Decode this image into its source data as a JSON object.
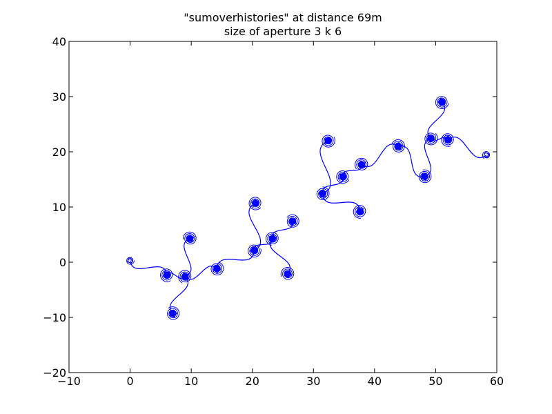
{
  "chart_data": {
    "type": "line",
    "title_lines": [
      "\"sumoverhistories\" at distance 69m",
      "size of aperture 3 k 6"
    ],
    "xlim": [
      -10,
      60
    ],
    "ylim": [
      -20,
      40
    ],
    "x_ticks": [
      -10,
      0,
      10,
      20,
      30,
      40,
      50,
      60
    ],
    "y_ticks": [
      -20,
      -10,
      0,
      10,
      20,
      30,
      40
    ],
    "x_tick_labels": [
      "−10",
      "0",
      "10",
      "20",
      "30",
      "40",
      "50",
      "60"
    ],
    "y_tick_labels": [
      "−20",
      "−10",
      "0",
      "10",
      "20",
      "30",
      "40"
    ],
    "grid": false,
    "line_color": "#0000ff",
    "spiral_centers": [
      {
        "x": 0,
        "y": 0.3,
        "size": "small"
      },
      {
        "x": 6,
        "y": -2.3,
        "size": "large"
      },
      {
        "x": 9,
        "y": -2.6,
        "size": "large"
      },
      {
        "x": 9.8,
        "y": 4.3,
        "size": "large"
      },
      {
        "x": 7,
        "y": -9.3,
        "size": "large"
      },
      {
        "x": 14.2,
        "y": -1.2,
        "size": "large"
      },
      {
        "x": 20.3,
        "y": 2.1,
        "size": "large"
      },
      {
        "x": 20.5,
        "y": 10.7,
        "size": "large"
      },
      {
        "x": 23.3,
        "y": 4.3,
        "size": "large"
      },
      {
        "x": 25.8,
        "y": -2.1,
        "size": "large"
      },
      {
        "x": 26.6,
        "y": 7.4,
        "size": "large"
      },
      {
        "x": 31.5,
        "y": 12.4,
        "size": "large"
      },
      {
        "x": 32.4,
        "y": 22.0,
        "size": "large"
      },
      {
        "x": 34.8,
        "y": 15.5,
        "size": "large"
      },
      {
        "x": 37.6,
        "y": 9.2,
        "size": "large"
      },
      {
        "x": 37.9,
        "y": 17.7,
        "size": "large"
      },
      {
        "x": 43.9,
        "y": 21.0,
        "size": "large"
      },
      {
        "x": 48.2,
        "y": 15.5,
        "size": "large"
      },
      {
        "x": 49.2,
        "y": 22.4,
        "size": "large"
      },
      {
        "x": 51.0,
        "y": 29.0,
        "size": "large"
      },
      {
        "x": 52.0,
        "y": 22.2,
        "size": "large"
      },
      {
        "x": 58.3,
        "y": 19.4,
        "size": "small"
      }
    ],
    "connections": [
      [
        0,
        1
      ],
      [
        1,
        2
      ],
      [
        2,
        3
      ],
      [
        2,
        4
      ],
      [
        2,
        5
      ],
      [
        5,
        6
      ],
      [
        6,
        7
      ],
      [
        6,
        8
      ],
      [
        8,
        9
      ],
      [
        8,
        10
      ],
      [
        11,
        12
      ],
      [
        11,
        13
      ],
      [
        11,
        14
      ],
      [
        13,
        15
      ],
      [
        15,
        16
      ],
      [
        16,
        17
      ],
      [
        17,
        18
      ],
      [
        18,
        19
      ],
      [
        18,
        20
      ],
      [
        20,
        21
      ]
    ]
  }
}
